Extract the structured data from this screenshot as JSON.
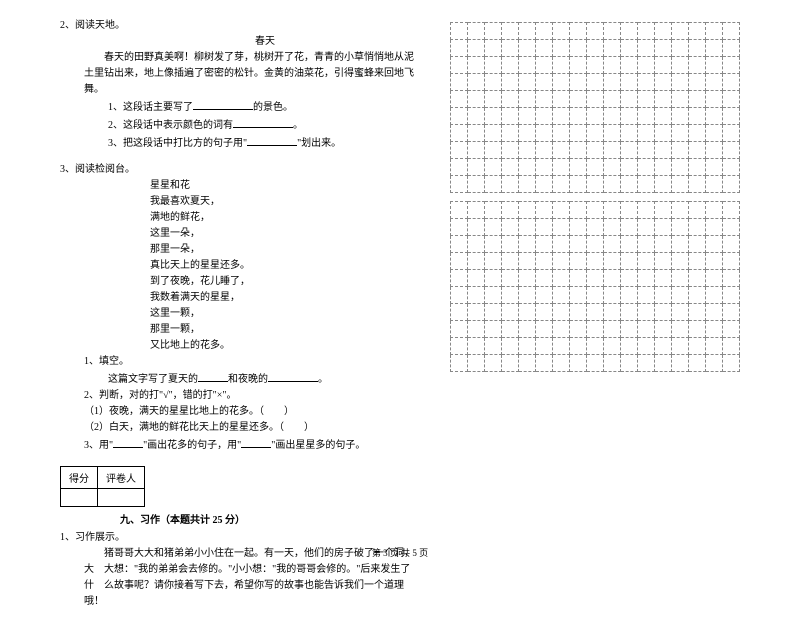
{
  "q2": {
    "num": "2、阅读天地。",
    "title": "春天",
    "para": "春天的田野真美啊！柳树发了芽，桃树开了花，青青的小草悄悄地从泥土里钻出来，地上像插遍了密密的松针。金黄的油菜花，引得蜜蜂来回地飞舞。",
    "i1": "1、这段话主要写了",
    "i1b": "的景色。",
    "i2": "2、这段话中表示颜色的词有",
    "i2b": "。",
    "i3a": "3、把这段话中打比方的句子用\"",
    "i3b": "\"划出来。"
  },
  "q3": {
    "num": "3、阅读检阅台。",
    "title": "星星和花",
    "lines": [
      "我最喜欢夏天，",
      "满地的鲜花，",
      "这里一朵，",
      "那里一朵，",
      "真比天上的星星还多。",
      "到了夜晚，花儿睡了，",
      "我数着满天的星星，",
      "这里一颗，",
      "那里一颗，",
      "又比地上的花多。"
    ],
    "s1": "1、填空。",
    "s1a": "这篇文字写了夏天的",
    "s1b": "和夜晚的",
    "s1c": "。",
    "s2": "2、判断，对的打\"√\"，错的打\"×\"。",
    "s2a": "（1）夜晚，满天的星星比地上的花多。（　　）",
    "s2b": "（2）白天，满地的鲜花比天上的星星还多。（　　）",
    "s3a": "3、用\"",
    "s3b": "\"画出花多的句子，用\"",
    "s3c": "\"画出星星多的句子。"
  },
  "score": {
    "c1": "得分",
    "c2": "评卷人"
  },
  "sec9": "九、习作（本题共计 25 分）",
  "q1w": {
    "num": "1、习作展示。",
    "para": "猪哥哥大大和猪弟弟小小住在一起。有一天，他们的房子破了一个洞，大　大想：\"我的弟弟会去修的。\"小小想：\"我的哥哥会修的。\"后来发生了什　么故事呢？请你接着写下去，希望你写的故事也能告诉我们一个道理哦！"
  },
  "footer": "第 3 页 共 5 页",
  "grid": {
    "rows": 10,
    "cols": 17
  }
}
